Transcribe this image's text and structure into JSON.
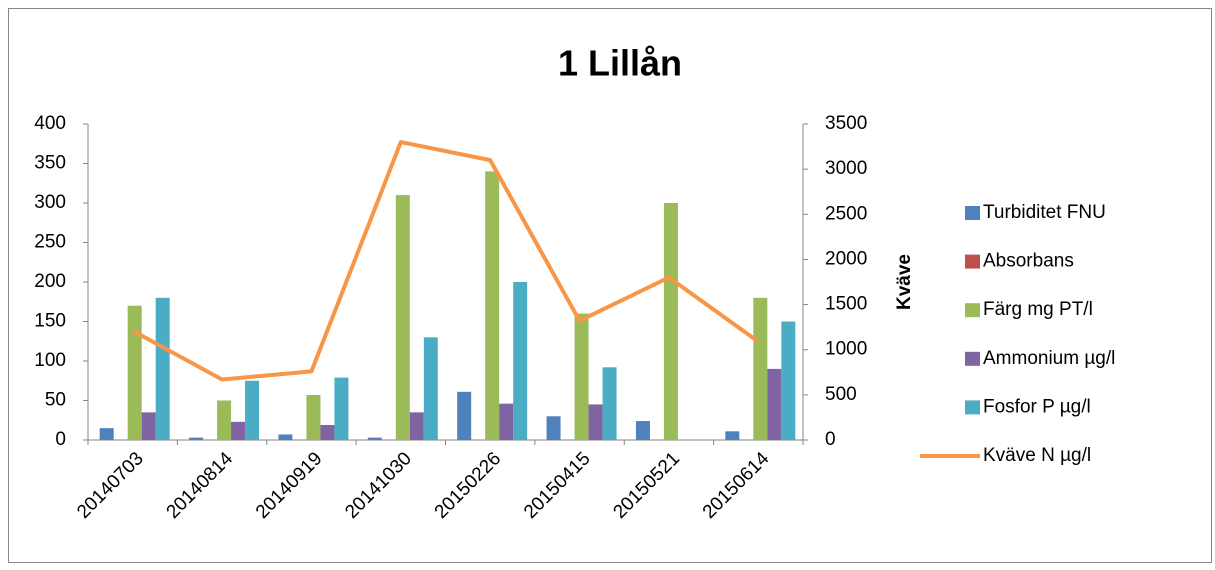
{
  "chart_data": {
    "type": "bar",
    "title": "1 Lillån",
    "y2label": "Kväve",
    "categories": [
      "20140703",
      "20140814",
      "20140919",
      "20141030",
      "20150226",
      "20150415",
      "20150521",
      "20150614"
    ],
    "series": [
      {
        "name": "Turbiditet FNU",
        "color": "#4f81bd",
        "type": "bar",
        "values": [
          15,
          3,
          7,
          3,
          61,
          30,
          24,
          11
        ]
      },
      {
        "name": "Absorbans",
        "color": "#c0504d",
        "type": "bar",
        "values": [
          0.3,
          0.3,
          0.3,
          0.3,
          0.3,
          0.3,
          0.3,
          0.3
        ]
      },
      {
        "name": "Färg mg PT/l",
        "color": "#9bbb59",
        "type": "bar",
        "values": [
          170,
          50,
          57,
          310,
          340,
          160,
          300,
          180
        ]
      },
      {
        "name": "Ammonium µg/l",
        "color": "#8064a2",
        "type": "bar",
        "values": [
          35,
          23,
          19,
          35,
          46,
          45,
          null,
          90
        ]
      },
      {
        "name": "Fosfor P µg/l",
        "color": "#4bacc6",
        "type": "bar",
        "values": [
          180,
          75,
          79,
          130,
          200,
          92,
          null,
          150
        ]
      },
      {
        "name": "Kväve N µg/l",
        "color": "#f79646",
        "type": "line",
        "axis": "y2",
        "values": [
          1210,
          670,
          760,
          3300,
          3100,
          1320,
          1800,
          1090
        ]
      }
    ],
    "ylim": [
      0,
      400
    ],
    "yticks": [
      0,
      50,
      100,
      150,
      200,
      250,
      300,
      350,
      400
    ],
    "y2lim": [
      0,
      3500
    ],
    "y2ticks": [
      0,
      500,
      1000,
      1500,
      2000,
      2500,
      3000,
      3500
    ],
    "legend": "right"
  }
}
